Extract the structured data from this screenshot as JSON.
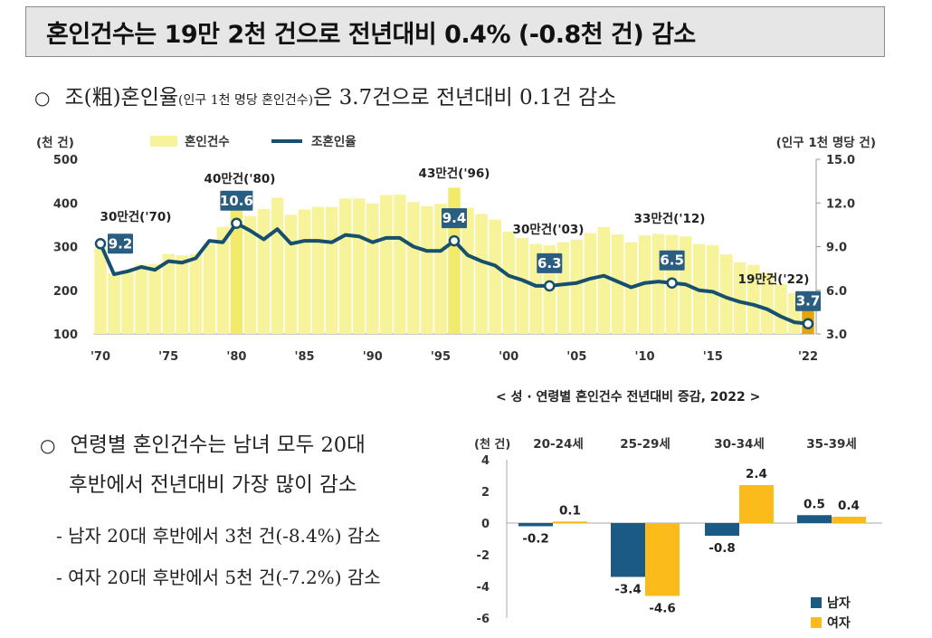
{
  "headline": "혼인건수는 19만 2천 건으로 전년대비 0.4% (-0.8천 건) 감소",
  "bullet1": {
    "ring": "○",
    "main": "조(粗)혼인율",
    "small": "(인구 1천 명당 혼인건수)",
    "rest": "은 3.7건으로 전년대비 0.1건 감소"
  },
  "bullet2": {
    "ring": "○",
    "line1": "연령별 혼인건수는 남녀 모두 20대",
    "line2": "후반에서 전년대비 가장 많이 감소"
  },
  "sub1": "- 남자 20대 후반에서 3천 건(-8.4%) 감소",
  "sub2": "- 여자 20대 후반에서 5천 건(-7.2%) 감소",
  "colors": {
    "bar": "#f7f39a",
    "bar_highlight": "#f2ea6a",
    "bar_last": "#e3a50a",
    "line": "#16506e",
    "male": "#1b5a84",
    "female": "#fbbc1b",
    "label_box": "#2a5d82"
  },
  "chart_data": [
    {
      "type": "bar",
      "combo": "bar + line (dual axis)",
      "left_axis_label": "(천 건)",
      "right_axis_label": "(인구 1천 명당 건)",
      "legend": [
        "혼인건수",
        "조혼인율"
      ],
      "legend_position": "top",
      "years": [
        1970,
        1971,
        1972,
        1973,
        1974,
        1975,
        1976,
        1977,
        1978,
        1979,
        1980,
        1981,
        1982,
        1983,
        1984,
        1985,
        1986,
        1987,
        1988,
        1989,
        1990,
        1991,
        1992,
        1993,
        1994,
        1995,
        1996,
        1997,
        1998,
        1999,
        2000,
        2001,
        2002,
        2003,
        2004,
        2005,
        2006,
        2007,
        2008,
        2009,
        2010,
        2011,
        2012,
        2013,
        2014,
        2015,
        2016,
        2017,
        2018,
        2019,
        2020,
        2021,
        2022
      ],
      "xtick_labels": [
        {
          "year": 1970,
          "label": "'70"
        },
        {
          "year": 1975,
          "label": "'75"
        },
        {
          "year": 1980,
          "label": "'80"
        },
        {
          "year": 1985,
          "label": "'85"
        },
        {
          "year": 1990,
          "label": "'90"
        },
        {
          "year": 1995,
          "label": "'95"
        },
        {
          "year": 2000,
          "label": "'00"
        },
        {
          "year": 2005,
          "label": "'05"
        },
        {
          "year": 2010,
          "label": "'10"
        },
        {
          "year": 2015,
          "label": "'15"
        },
        {
          "year": 2022,
          "label": "'22"
        }
      ],
      "series": [
        {
          "name": "혼인건수",
          "axis": "left",
          "values": [
            295,
            239,
            245,
            259,
            260,
            283,
            280,
            283,
            305,
            345,
            403,
            370,
            386,
            412,
            373,
            385,
            391,
            391,
            410,
            410,
            399,
            418,
            419,
            402,
            393,
            398,
            435,
            389,
            375,
            362,
            334,
            320,
            306,
            303,
            310,
            316,
            331,
            345,
            328,
            310,
            326,
            329,
            327,
            323,
            306,
            303,
            282,
            264,
            258,
            240,
            214,
            193,
            192
          ]
        },
        {
          "name": "조혼인율",
          "axis": "right",
          "values": [
            9.2,
            7.1,
            7.3,
            7.6,
            7.4,
            8.0,
            7.9,
            8.2,
            9.4,
            9.3,
            10.6,
            10.1,
            9.5,
            10.2,
            9.2,
            9.4,
            9.4,
            9.3,
            9.8,
            9.7,
            9.3,
            9.6,
            9.6,
            9.0,
            8.7,
            8.7,
            9.4,
            8.4,
            8.0,
            7.7,
            7.0,
            6.7,
            6.3,
            6.3,
            6.4,
            6.5,
            6.8,
            7.0,
            6.6,
            6.2,
            6.5,
            6.6,
            6.5,
            6.4,
            6.0,
            5.9,
            5.5,
            5.2,
            5.0,
            4.7,
            4.2,
            3.8,
            3.7
          ]
        }
      ],
      "left_ylim": [
        100,
        500
      ],
      "left_yticks": [
        100,
        200,
        300,
        400,
        500
      ],
      "right_ylim": [
        3.0,
        15.0
      ],
      "right_yticks": [
        "3.0",
        "6.0",
        "9.0",
        "12.0",
        "15.0"
      ],
      "annotations": [
        {
          "year": 1970,
          "count_label": "30만건('70)",
          "rate_label": "9.2"
        },
        {
          "year": 1980,
          "count_label": "40만건('80)",
          "rate_label": "10.6"
        },
        {
          "year": 1996,
          "count_label": "43만건('96)",
          "rate_label": "9.4"
        },
        {
          "year": 2003,
          "count_label": "30만건('03)",
          "rate_label": "6.3"
        },
        {
          "year": 2012,
          "count_label": "33만건('12)",
          "rate_label": "6.5"
        },
        {
          "year": 2022,
          "count_label": "19만건('22)",
          "rate_label": "3.7"
        }
      ]
    },
    {
      "type": "bar",
      "title": "< 성 · 연령별 혼인건수 전년대비 증감, 2022 >",
      "ylabel": "(천 건)",
      "categories": [
        "20-24세",
        "25-29세",
        "30-34세",
        "35-39세"
      ],
      "series": [
        {
          "name": "남자",
          "values": [
            -0.2,
            -3.4,
            -0.8,
            0.5
          ]
        },
        {
          "name": "여자",
          "values": [
            0.1,
            -4.6,
            2.4,
            0.4
          ]
        }
      ],
      "value_labels": {
        "남자": [
          "-0.2",
          "-3.4",
          "-0.8",
          "0.5"
        ],
        "여자": [
          "0.1",
          "-4.6",
          "2.4",
          "0.4"
        ]
      },
      "ylim": [
        -6,
        4
      ],
      "yticks": [
        "4",
        "2",
        "0",
        "-2",
        "-4",
        "-6"
      ],
      "legend_position": "bottom-right"
    }
  ]
}
